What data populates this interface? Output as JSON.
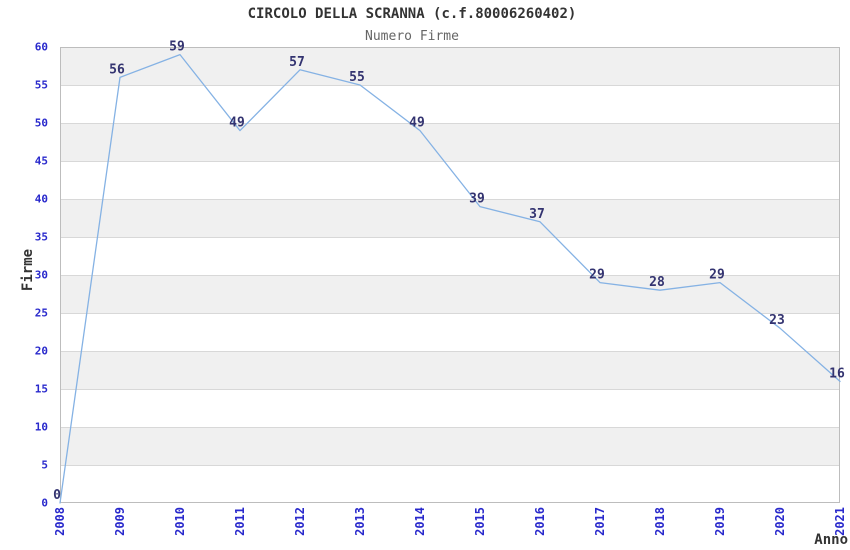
{
  "chart_data": {
    "type": "line",
    "title": "CIRCOLO DELLA SCRANNA (c.f.80006260402)",
    "subtitle": "Numero Firme",
    "xlabel": "Anno",
    "ylabel": "Firme",
    "categories": [
      "2008",
      "2009",
      "2010",
      "2011",
      "2012",
      "2013",
      "2014",
      "2015",
      "2016",
      "2017",
      "2018",
      "2019",
      "2020",
      "2021"
    ],
    "series": [
      {
        "name": "Numero Firme",
        "values": [
          0,
          56,
          59,
          49,
          57,
          55,
          49,
          39,
          37,
          29,
          28,
          29,
          23,
          16
        ]
      }
    ],
    "ylim": [
      0,
      60
    ],
    "ytick_step": 5,
    "yticks": [
      0,
      5,
      10,
      15,
      20,
      25,
      30,
      35,
      40,
      45,
      50,
      55,
      60
    ],
    "grid": "horizontal gridlines every 5 units with alternating white/gray bands",
    "legend_position": "none",
    "point_labels": true,
    "colors": {
      "line": "#85b2e4",
      "band_gray": "#f0f0f0",
      "gridline": "#d8d8d8",
      "plot_border": "#bdbdbd",
      "tick_label": "#2929cc",
      "point_label": "#333370",
      "title": "#333333",
      "subtitle": "#666666",
      "axis_title": "#333333",
      "background": "#ffffff"
    }
  }
}
